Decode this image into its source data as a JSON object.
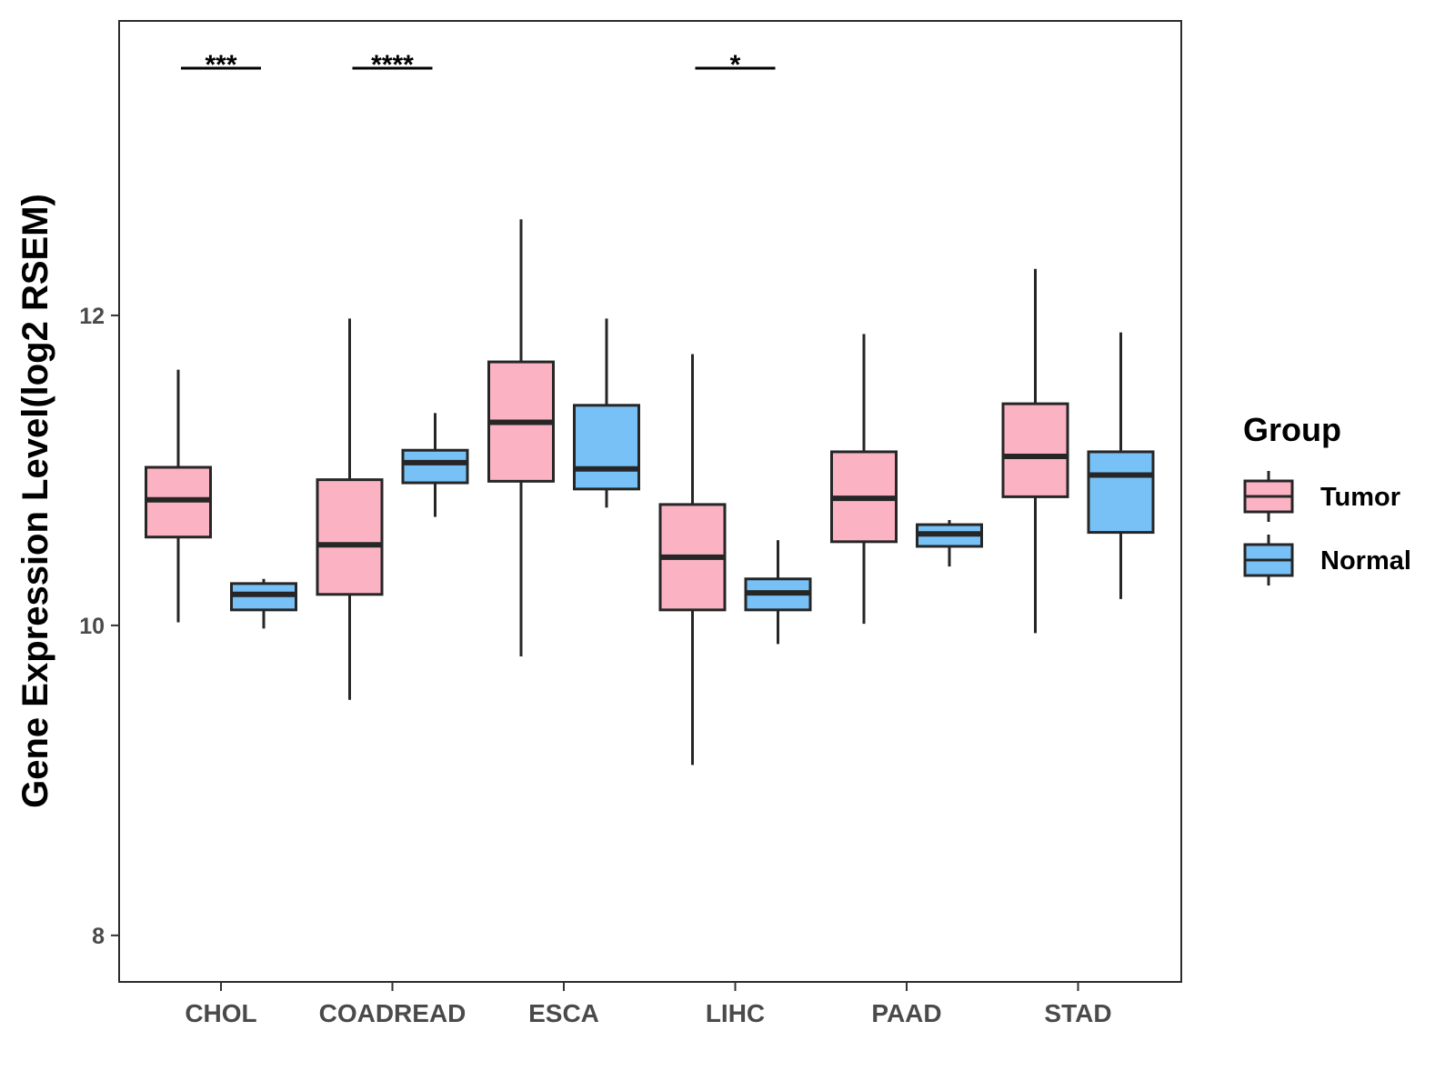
{
  "chart_data": {
    "type": "boxplot",
    "ylabel": "Gene Expression Level(log2 RSEM)",
    "xlabel": "",
    "ylim": [
      7.7,
      13.9
    ],
    "yticks": [
      8,
      10,
      12
    ],
    "ytick_labels": [
      "8",
      "10",
      "12"
    ],
    "categories": [
      "CHOL",
      "COADREAD",
      "ESCA",
      "LIHC",
      "PAAD",
      "STAD"
    ],
    "legend": {
      "title": "Group",
      "position": "right",
      "entries": [
        {
          "name": "Tumor",
          "color": "#fbb3c3"
        },
        {
          "name": "Normal",
          "color": "#78c1f7"
        }
      ]
    },
    "series": [
      {
        "name": "Tumor",
        "color": "#fbb3c3",
        "boxes": [
          {
            "min": 10.02,
            "q1": 10.57,
            "median": 10.81,
            "q3": 11.02,
            "max": 11.65
          },
          {
            "min": 9.52,
            "q1": 10.2,
            "median": 10.52,
            "q3": 10.94,
            "max": 11.98
          },
          {
            "min": 9.8,
            "q1": 10.93,
            "median": 11.31,
            "q3": 11.7,
            "max": 12.62
          },
          {
            "min": 9.1,
            "q1": 10.1,
            "median": 10.44,
            "q3": 10.78,
            "max": 11.75
          },
          {
            "min": 10.01,
            "q1": 10.54,
            "median": 10.82,
            "q3": 11.12,
            "max": 11.88
          },
          {
            "min": 9.95,
            "q1": 10.83,
            "median": 11.09,
            "q3": 11.43,
            "max": 12.3
          }
        ]
      },
      {
        "name": "Normal",
        "color": "#78c1f7",
        "boxes": [
          {
            "min": 9.98,
            "q1": 10.1,
            "median": 10.2,
            "q3": 10.27,
            "max": 10.3
          },
          {
            "min": 10.7,
            "q1": 10.92,
            "median": 11.05,
            "q3": 11.13,
            "max": 11.37
          },
          {
            "min": 10.76,
            "q1": 10.88,
            "median": 11.01,
            "q3": 11.42,
            "max": 11.98
          },
          {
            "min": 9.88,
            "q1": 10.1,
            "median": 10.21,
            "q3": 10.3,
            "max": 10.55
          },
          {
            "min": 10.38,
            "q1": 10.51,
            "median": 10.59,
            "q3": 10.65,
            "max": 10.68
          },
          {
            "min": 10.17,
            "q1": 10.6,
            "median": 10.97,
            "q3": 11.12,
            "max": 11.89
          }
        ]
      }
    ],
    "significance": [
      {
        "category": "CHOL",
        "label": "***"
      },
      {
        "category": "COADREAD",
        "label": "****"
      },
      {
        "category": "LIHC",
        "label": "*"
      }
    ]
  }
}
